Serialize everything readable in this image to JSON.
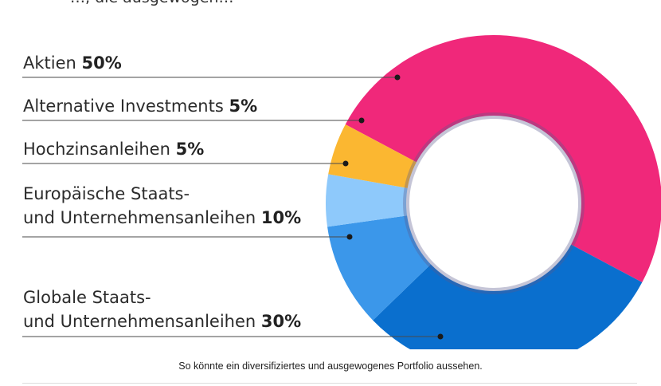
{
  "header_fragment": "…, die ausgewogen…",
  "chart_data": {
    "type": "donut",
    "slices": [
      {
        "name": "Aktien",
        "value": 50,
        "value_label": "50%",
        "color": "#f0287a"
      },
      {
        "name": "Globale Staats- und Unternehmensanleihen",
        "value": 30,
        "value_label": "30%",
        "color": "#0a6fce"
      },
      {
        "name": "Europäische Staats- und Unternehmensanleihen",
        "value": 10,
        "value_label": "10%",
        "color": "#3b97ea"
      },
      {
        "name": "Hochzinsanleihen",
        "value": 5,
        "value_label": "5%",
        "color": "#8ec9fb"
      },
      {
        "name": "Alternative Investments",
        "value": 5,
        "value_label": "5%",
        "color": "#fbb731"
      }
    ]
  },
  "labels": {
    "aktien": {
      "line1": "Aktien ",
      "value": "50%"
    },
    "alternative": {
      "line1": "Alternative Investments ",
      "value": "5%"
    },
    "hochzins": {
      "line1": "Hochzinsanleihen ",
      "value": "5%"
    },
    "europa": {
      "line1": "Europäische Staats-",
      "line2": "und Unternehmensanleihen ",
      "value": "10%"
    },
    "global": {
      "line1": "Globale Staats-",
      "line2": "und Unternehmensanleihen ",
      "value": "30%"
    }
  },
  "caption": "So könnte ein diversifiziertes und ausgewogenes Portfolio aussehen."
}
